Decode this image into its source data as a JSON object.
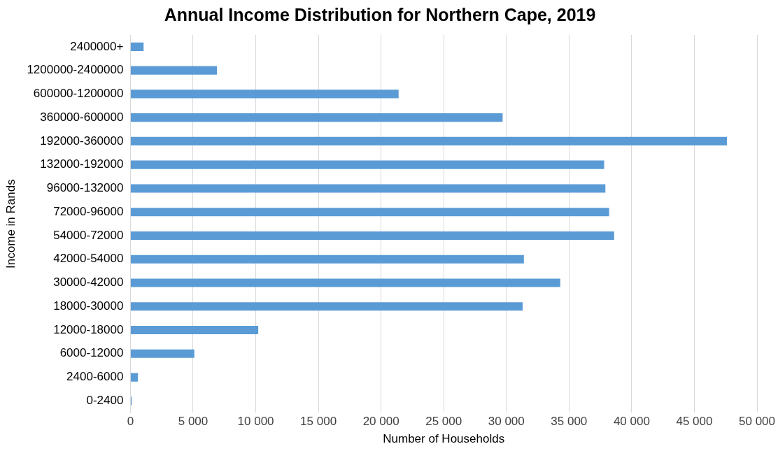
{
  "chart_data": {
    "type": "bar",
    "orientation": "horizontal",
    "title": "Annual Income Distribution for Northern Cape, 2019",
    "xlabel": "Number of Households",
    "ylabel": "Income in Rands",
    "categories": [
      "2400000+",
      "1200000-2400000",
      "600000-1200000",
      "360000-600000",
      "192000-360000",
      "132000-192000",
      "96000-132000",
      "72000-96000",
      "54000-72000",
      "42000-54000",
      "30000-42000",
      "18000-30000",
      "12000-18000",
      "6000-12000",
      "2400-6000",
      "0-2400"
    ],
    "values": [
      1050,
      6900,
      21400,
      29700,
      47600,
      37800,
      37900,
      38200,
      38600,
      31400,
      34300,
      31300,
      10200,
      5100,
      600,
      100
    ],
    "color": "#5b9bd5",
    "xlim": [
      0,
      50000
    ],
    "xticks": [
      0,
      {
        "value": 5000,
        "label": "5 000"
      },
      {
        "value": 10000,
        "label": "10 000"
      },
      {
        "value": 15000,
        "label": "15 000"
      },
      {
        "value": 20000,
        "label": "20 000"
      },
      {
        "value": 25000,
        "label": "25 000"
      },
      {
        "value": 30000,
        "label": "30 000"
      },
      {
        "value": 35000,
        "label": "35 000"
      },
      {
        "value": 40000,
        "label": "40 000"
      },
      {
        "value": 45000,
        "label": "45 000"
      },
      {
        "value": 50000,
        "label": "50 000"
      }
    ],
    "grid": "x",
    "legend": false
  }
}
